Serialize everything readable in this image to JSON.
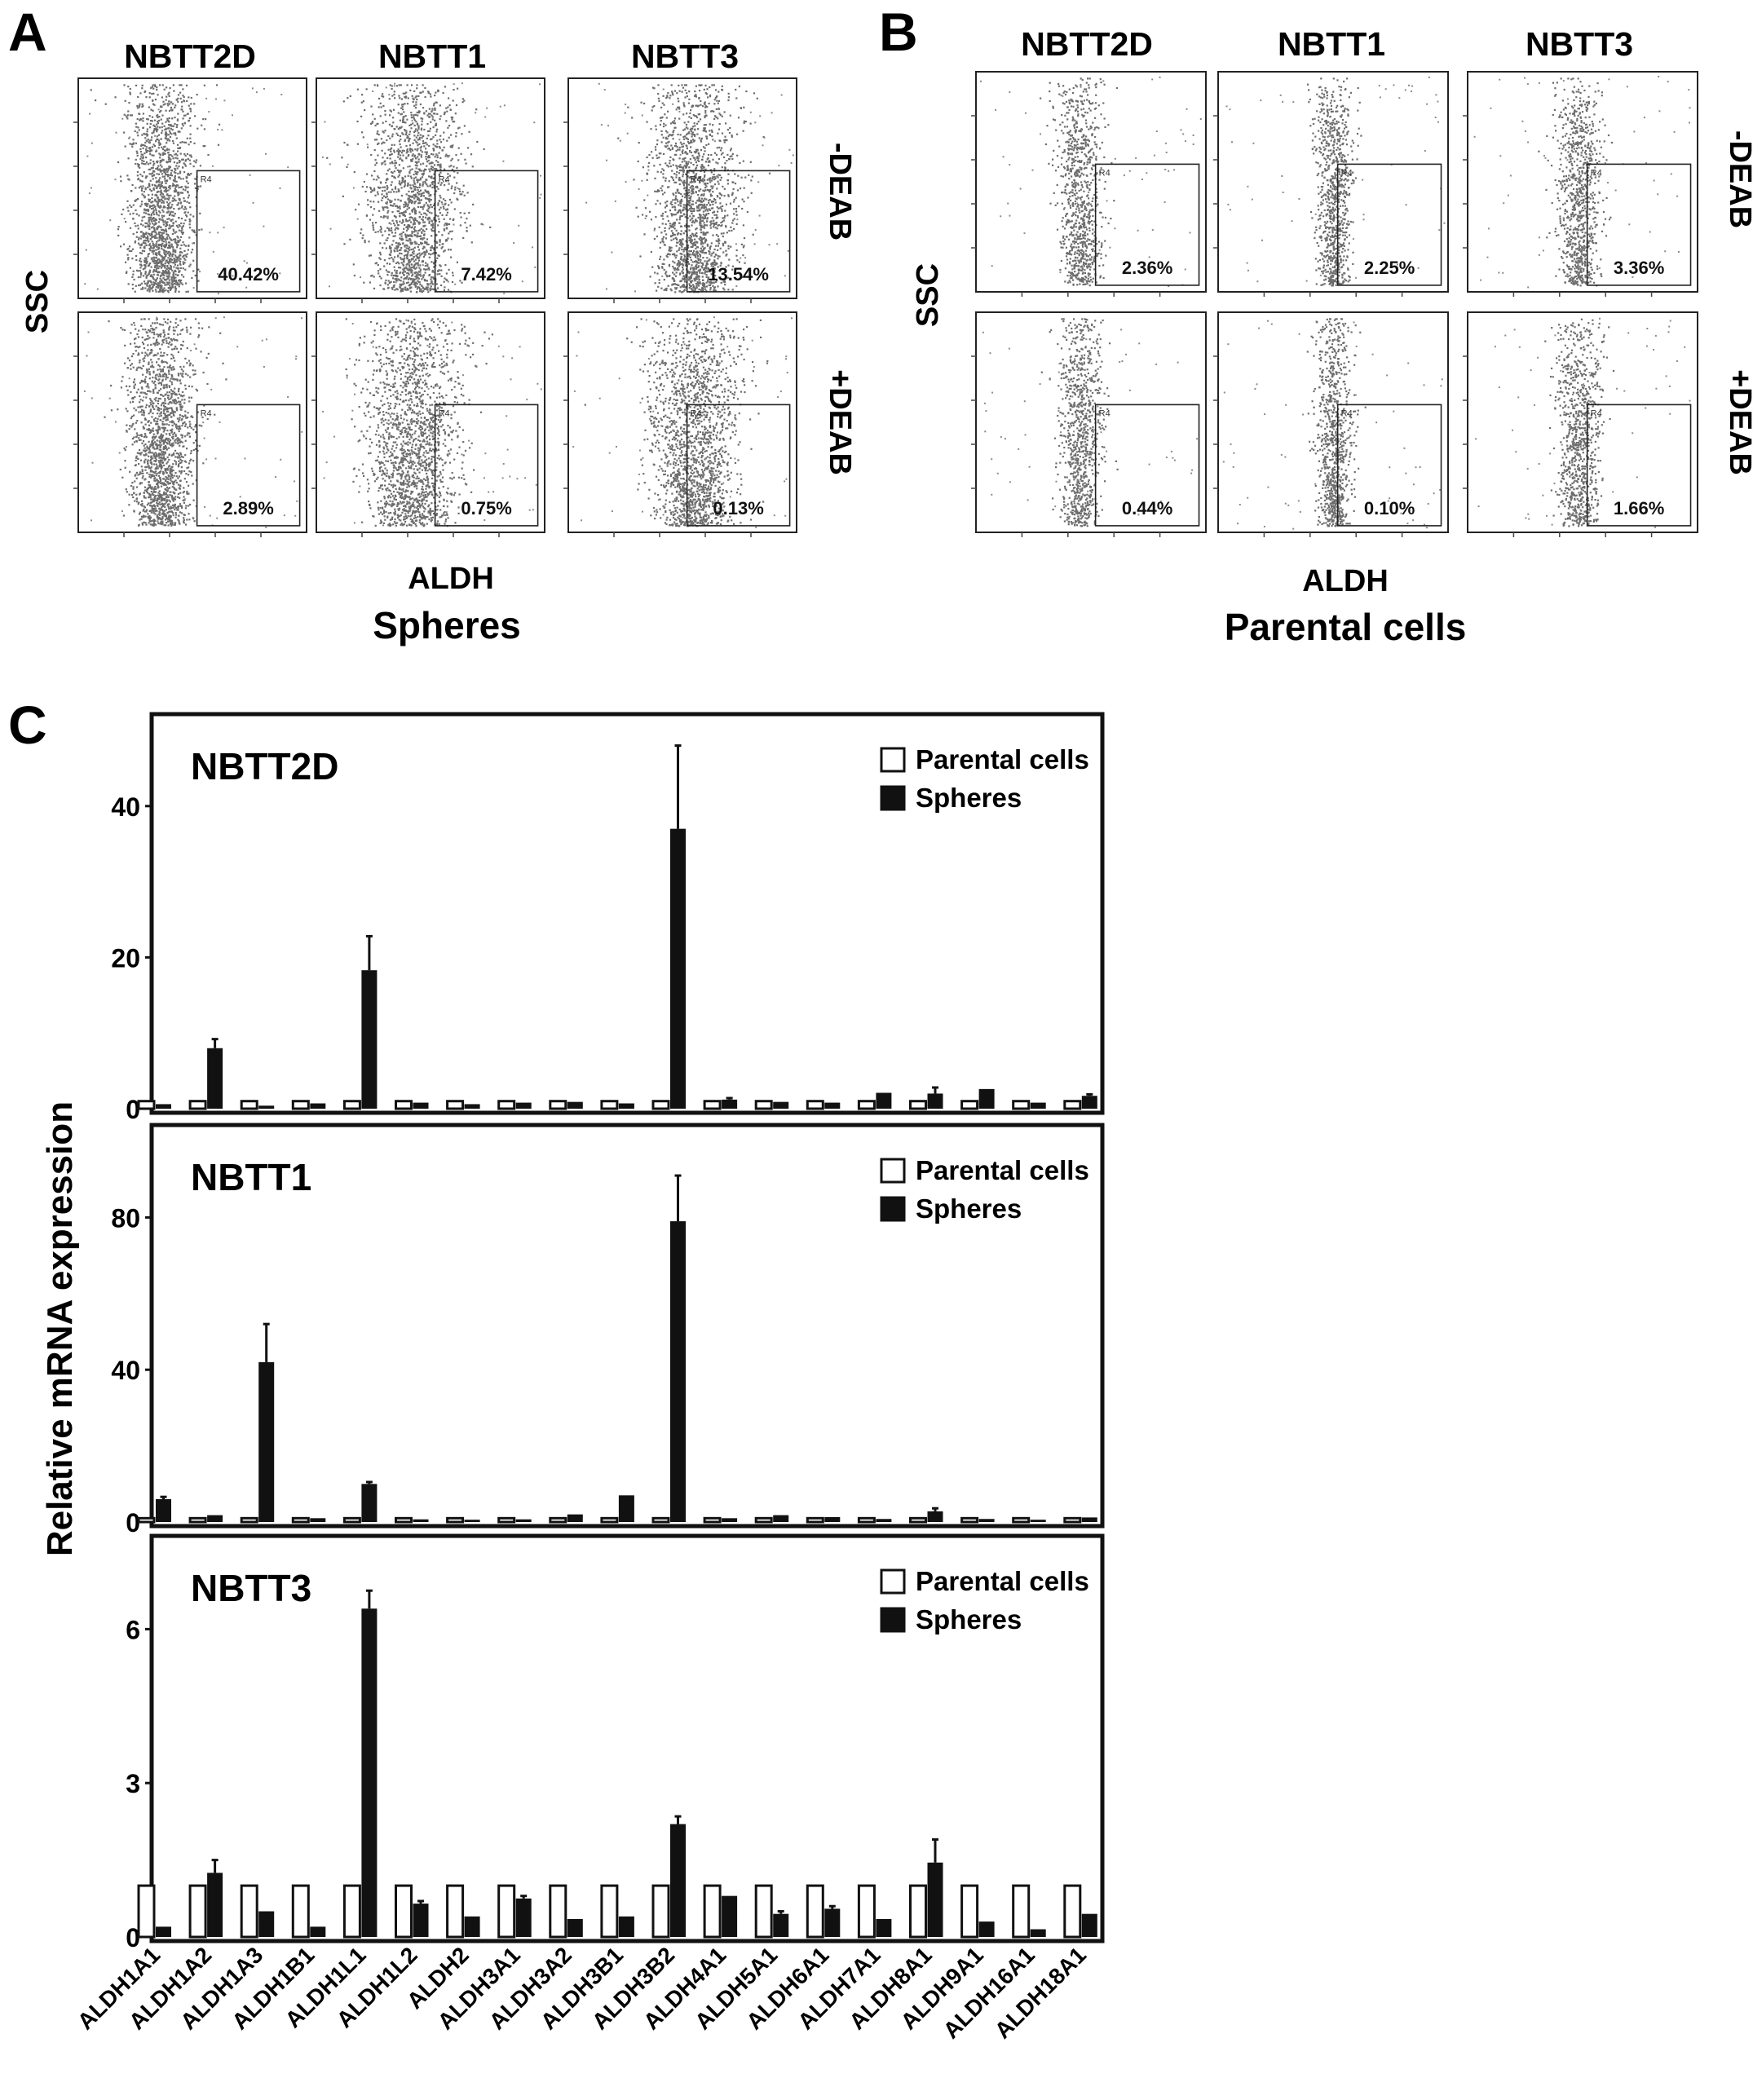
{
  "panel_letters": [
    "A",
    "B",
    "C"
  ],
  "flow": {
    "ylabel": "SSC",
    "xlabel": "ALDH",
    "gate_label": "R4",
    "row_labels": [
      "-DEAB",
      "+DEAB"
    ],
    "panels": [
      {
        "letter": "A",
        "subtitle": "Spheres",
        "lines": [
          "NBTT2D",
          "NBTT1",
          "NBTT3"
        ],
        "minus_deab": [
          "40.42%",
          "7.42%",
          "13.54%"
        ],
        "plus_deab": [
          "2.89%",
          "0.75%",
          "0.13%"
        ]
      },
      {
        "letter": "B",
        "subtitle": "Parental cells",
        "lines": [
          "NBTT2D",
          "NBTT1",
          "NBTT3"
        ],
        "minus_deab": [
          "2.36%",
          "2.25%",
          "3.36%"
        ],
        "plus_deab": [
          "0.44%",
          "0.10%",
          "1.66%"
        ]
      }
    ]
  },
  "chart_data": {
    "type": "bar",
    "panel_letter": "C",
    "ylabel": "Relative mRNA expression",
    "categories": [
      "ALDH1A1",
      "ALDH1A2",
      "ALDH1A3",
      "ALDH1B1",
      "ALDH1L1",
      "ALDH1L2",
      "ALDH2",
      "ALDH3A1",
      "ALDH3A2",
      "ALDH3B1",
      "ALDH3B2",
      "ALDH4A1",
      "ALDH5A1",
      "ALDH6A1",
      "ALDH7A1",
      "ALDH8A1",
      "ALDH9A1",
      "ALDH16A1",
      "ALDH18A1"
    ],
    "legend": [
      "Parental cells",
      "Spheres"
    ],
    "colors": {
      "parental": "#ffffff",
      "spheres": "#111111",
      "frame": "#111111"
    },
    "subplots": [
      {
        "title": "NBTT2D",
        "ylim": [
          0,
          50
        ],
        "yticks": [
          0,
          20,
          40
        ],
        "series": [
          {
            "name": "Parental cells",
            "values": [
              1,
              1,
              1,
              1,
              1,
              1,
              1,
              1,
              1,
              1,
              1,
              1,
              1,
              1,
              1,
              1,
              1,
              1,
              1
            ]
          },
          {
            "name": "Spheres",
            "values": [
              0.6,
              8.0,
              0.4,
              0.7,
              18.3,
              0.8,
              0.6,
              0.8,
              0.9,
              0.7,
              37.0,
              1.2,
              0.9,
              0.8,
              2.1,
              2.0,
              2.6,
              0.8,
              1.7
            ],
            "errors": [
              0,
              1.2,
              0,
              0,
              4.5,
              0,
              0,
              0,
              0,
              0,
              11,
              0.2,
              0,
              0,
              0,
              0.8,
              0,
              0,
              0.2
            ]
          }
        ]
      },
      {
        "title": "NBTT1",
        "ylim": [
          0,
          100
        ],
        "yticks": [
          0,
          40,
          80
        ],
        "series": [
          {
            "name": "Parental cells",
            "values": [
              1,
              1,
              1,
              1,
              1,
              1,
              1,
              1,
              1,
              1,
              1,
              1,
              1,
              1,
              1,
              1,
              1,
              1,
              1
            ]
          },
          {
            "name": "Spheres",
            "values": [
              6.0,
              1.8,
              42.0,
              1.0,
              10.0,
              0.7,
              0.6,
              0.7,
              2.0,
              7.0,
              79.0,
              1.0,
              1.8,
              1.3,
              0.8,
              2.8,
              0.8,
              0.6,
              1.2
            ],
            "errors": [
              0.6,
              0,
              10,
              0,
              0.5,
              0,
              0,
              0,
              0,
              0,
              12,
              0,
              0,
              0,
              0,
              0.8,
              0,
              0,
              0
            ]
          }
        ]
      },
      {
        "title": "NBTT3",
        "ylim": [
          0,
          7.5
        ],
        "yticks": [
          0,
          3,
          6
        ],
        "series": [
          {
            "name": "Parental cells",
            "values": [
              1,
              1,
              1,
              1,
              1,
              1,
              1,
              1,
              1,
              1,
              1,
              1,
              1,
              1,
              1,
              1,
              1,
              1,
              1
            ]
          },
          {
            "name": "Spheres",
            "values": [
              0.2,
              1.25,
              0.5,
              0.2,
              6.4,
              0.65,
              0.4,
              0.75,
              0.35,
              0.4,
              2.2,
              0.8,
              0.45,
              0.55,
              0.35,
              1.45,
              0.3,
              0.15,
              0.45
            ],
            "errors": [
              0,
              0.25,
              0,
              0,
              0.35,
              0.05,
              0,
              0.05,
              0,
              0,
              0.15,
              0,
              0.05,
              0.05,
              0,
              0.45,
              0,
              0,
              0
            ]
          }
        ]
      }
    ]
  }
}
